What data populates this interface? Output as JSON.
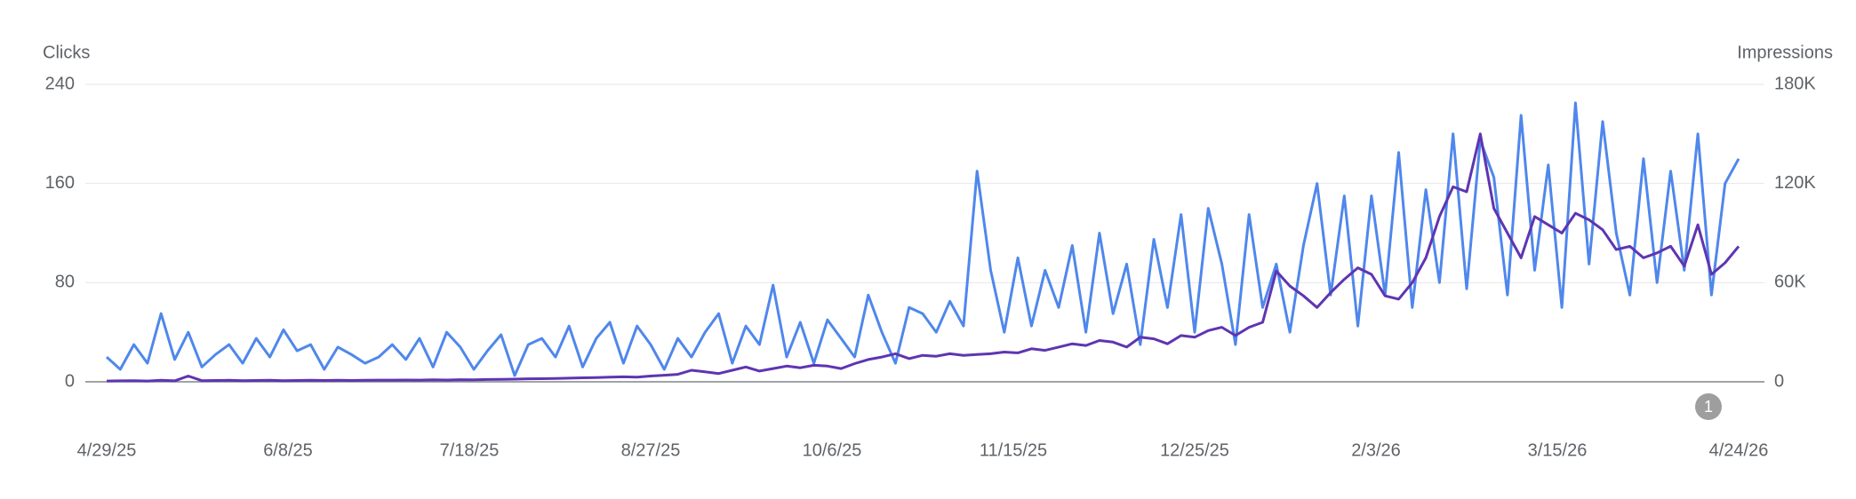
{
  "chart_data": {
    "type": "line",
    "ylabel": "Clicks",
    "y2label": "Impressions",
    "annotation": "1",
    "grid": true,
    "xlim": [
      "4/29/25",
      "4/24/26"
    ],
    "xticks": [
      "4/29/25",
      "6/8/25",
      "7/18/25",
      "8/27/25",
      "10/6/25",
      "11/15/25",
      "12/25/25",
      "2/3/26",
      "3/15/26",
      "4/24/26"
    ],
    "ylim": [
      0,
      240
    ],
    "yticks": [
      0,
      80,
      160,
      240
    ],
    "y2lim": [
      0,
      180000
    ],
    "y2ticks": [
      0,
      {
        "value": 60000,
        "label": "60K"
      },
      {
        "value": 120000,
        "label": "120K"
      },
      {
        "value": 180000,
        "label": "180K"
      }
    ],
    "x": [
      "4/29/25",
      "5/2/25",
      "5/5/25",
      "5/8/25",
      "5/11/25",
      "5/14/25",
      "5/17/25",
      "5/20/25",
      "5/23/25",
      "5/26/25",
      "5/29/25",
      "6/1/25",
      "6/4/25",
      "6/7/25",
      "6/10/25",
      "6/13/25",
      "6/16/25",
      "6/19/25",
      "6/22/25",
      "6/25/25",
      "6/28/25",
      "7/1/25",
      "7/4/25",
      "7/7/25",
      "7/10/25",
      "7/13/25",
      "7/16/25",
      "7/19/25",
      "7/22/25",
      "7/25/25",
      "7/28/25",
      "7/31/25",
      "8/3/25",
      "8/6/25",
      "8/9/25",
      "8/12/25",
      "8/15/25",
      "8/18/25",
      "8/21/25",
      "8/24/25",
      "8/27/25",
      "8/30/25",
      "9/2/25",
      "9/5/25",
      "9/8/25",
      "9/11/25",
      "9/14/25",
      "9/17/25",
      "9/20/25",
      "9/23/25",
      "9/26/25",
      "9/29/25",
      "10/2/25",
      "10/5/25",
      "10/8/25",
      "10/11/25",
      "10/14/25",
      "10/17/25",
      "10/20/25",
      "10/23/25",
      "10/26/25",
      "10/29/25",
      "11/1/25",
      "11/4/25",
      "11/7/25",
      "11/10/25",
      "11/13/25",
      "11/16/25",
      "11/19/25",
      "11/22/25",
      "11/25/25",
      "11/28/25",
      "12/1/25",
      "12/4/25",
      "12/7/25",
      "12/10/25",
      "12/13/25",
      "12/16/25",
      "12/19/25",
      "12/22/25",
      "12/25/25",
      "12/28/25",
      "12/31/25",
      "1/3/26",
      "1/6/26",
      "1/9/26",
      "1/12/26",
      "1/15/26",
      "1/18/26",
      "1/21/26",
      "1/24/26",
      "1/27/26",
      "1/30/26",
      "2/2/26",
      "2/5/26",
      "2/8/26",
      "2/11/26",
      "2/14/26",
      "2/17/26",
      "2/20/26",
      "2/23/26",
      "2/26/26",
      "3/1/26",
      "3/4/26",
      "3/7/26",
      "3/10/26",
      "3/13/26",
      "3/16/26",
      "3/19/26",
      "3/22/26",
      "3/25/26",
      "3/28/26",
      "3/31/26",
      "4/3/26",
      "4/6/26",
      "4/9/26",
      "4/12/26",
      "4/15/26",
      "4/18/26",
      "4/21/26",
      "4/24/26"
    ],
    "series": [
      {
        "name": "Clicks",
        "color": "#4f87ec",
        "values": [
          20,
          10,
          30,
          15,
          55,
          18,
          40,
          12,
          22,
          30,
          15,
          35,
          20,
          42,
          25,
          30,
          10,
          28,
          22,
          15,
          20,
          30,
          18,
          35,
          12,
          40,
          28,
          10,
          25,
          38,
          5,
          30,
          35,
          20,
          45,
          12,
          35,
          48,
          15,
          45,
          30,
          10,
          35,
          20,
          40,
          55,
          15,
          45,
          30,
          78,
          20,
          48,
          15,
          50,
          35,
          20,
          70,
          40,
          15,
          60,
          55,
          40,
          65,
          45,
          170,
          90,
          40,
          100,
          45,
          90,
          60,
          110,
          40,
          120,
          55,
          95,
          30,
          115,
          60,
          135,
          40,
          140,
          95,
          30,
          135,
          60,
          95,
          40,
          110,
          160,
          70,
          150,
          45,
          150,
          70,
          185,
          60,
          155,
          80,
          200,
          75,
          195,
          165,
          70,
          215,
          90,
          175,
          60,
          225,
          95,
          210,
          120,
          70,
          180,
          80,
          170,
          90,
          200,
          70,
          160,
          180
        ]
      },
      {
        "name": "Impressions",
        "color": "#5e35b1",
        "axis": "y2",
        "values": [
          500,
          600,
          700,
          500,
          900,
          600,
          3500,
          700,
          800,
          900,
          700,
          800,
          900,
          700,
          800,
          900,
          800,
          900,
          800,
          900,
          1000,
          1000,
          1100,
          1000,
          1200,
          1100,
          1300,
          1200,
          1400,
          1500,
          1600,
          1800,
          1900,
          2000,
          2200,
          2400,
          2600,
          2800,
          3000,
          2800,
          3500,
          4000,
          4500,
          7000,
          6000,
          5000,
          7000,
          9000,
          6500,
          8000,
          9500,
          8500,
          10000,
          9500,
          8000,
          11000,
          13500,
          15000,
          17000,
          14000,
          16000,
          15500,
          17000,
          16000,
          16500,
          17000,
          18000,
          17500,
          20000,
          19000,
          21000,
          23000,
          22000,
          25000,
          24000,
          21000,
          27000,
          26000,
          23000,
          28000,
          27000,
          31000,
          33000,
          28000,
          33000,
          36000,
          67000,
          58000,
          52000,
          45000,
          54000,
          62000,
          69000,
          65000,
          52000,
          50000,
          60000,
          75000,
          100000,
          118000,
          115000,
          150000,
          105000,
          90000,
          75000,
          100000,
          95000,
          90000,
          102000,
          98000,
          92000,
          80000,
          82000,
          75000,
          78000,
          82000,
          70000,
          95000,
          65000,
          72000,
          82000
        ]
      }
    ]
  }
}
